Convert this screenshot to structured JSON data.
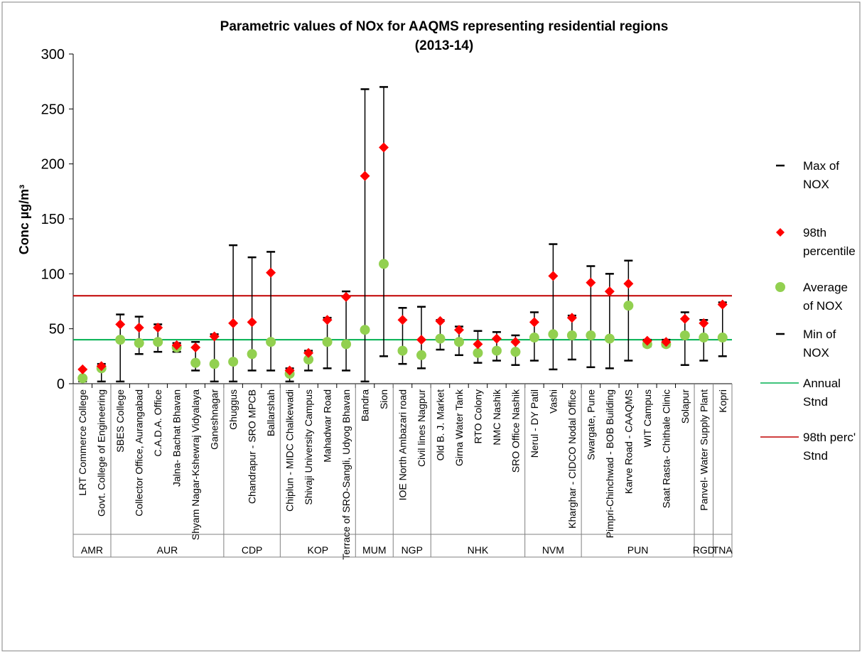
{
  "chart_data": {
    "type": "scatter",
    "title": "Parametric  values  of NOx for AAQMS representing residential regions",
    "subtitle": "(2013-14)",
    "ylabel": "Conc µg/m³",
    "ylim": [
      0,
      300
    ],
    "yticks": [
      0,
      50,
      100,
      150,
      200,
      250,
      300
    ],
    "stations": [
      {
        "name": "LRT Commerce College",
        "max": 13,
        "p98": 13,
        "avg": 5,
        "min": 2
      },
      {
        "name": "Govt. College of Engineering",
        "max": 18,
        "p98": 16,
        "avg": 14,
        "min": 2
      },
      {
        "name": "SBES College",
        "max": 63,
        "p98": 54,
        "avg": 40,
        "min": 2
      },
      {
        "name": "Collector Office, Aurangabad",
        "max": 61,
        "p98": 51,
        "avg": 37,
        "min": 27
      },
      {
        "name": "C.A.D.A. Office",
        "max": 54,
        "p98": 51,
        "avg": 38,
        "min": 29
      },
      {
        "name": "Jalna- Bachat Bhavan",
        "max": 37,
        "p98": 35,
        "avg": 33,
        "min": 29
      },
      {
        "name": "Shyam Nagar-Kshewraj Vidyalaya",
        "max": 38,
        "p98": 33,
        "avg": 19,
        "min": 12
      },
      {
        "name": "Ganeshnagar",
        "max": 45,
        "p98": 43,
        "avg": 18,
        "min": 2
      },
      {
        "name": "Ghuggus",
        "max": 126,
        "p98": 55,
        "avg": 20,
        "min": 2
      },
      {
        "name": "Chandrapur - SRO MPCB",
        "max": 115,
        "p98": 56,
        "avg": 27,
        "min": 12
      },
      {
        "name": "Ballarshah",
        "max": 120,
        "p98": 101,
        "avg": 38,
        "min": 12
      },
      {
        "name": "Chiplun - MIDC Chalkewadi",
        "max": 14,
        "p98": 12,
        "avg": 9,
        "min": 2
      },
      {
        "name": "Shivaji University Campus",
        "max": 30,
        "p98": 28,
        "avg": 22,
        "min": 12
      },
      {
        "name": "Mahadwar Road",
        "max": 60,
        "p98": 58,
        "avg": 38,
        "min": 14
      },
      {
        "name": "Terrace of SRO-Sangli, Udyog Bhavan",
        "max": 84,
        "p98": 79,
        "avg": 36,
        "min": 12
      },
      {
        "name": "Bandra",
        "max": 268,
        "p98": 189,
        "avg": 49,
        "min": 2
      },
      {
        "name": "Sion",
        "max": 270,
        "p98": 215,
        "avg": 109,
        "min": 25
      },
      {
        "name": "IOE North Ambazari road",
        "max": 69,
        "p98": 58,
        "avg": 30,
        "min": 18
      },
      {
        "name": "Civil lines Nagpur",
        "max": 70,
        "p98": 40,
        "avg": 26,
        "min": 14
      },
      {
        "name": "Old B. J. Market",
        "max": 58,
        "p98": 57,
        "avg": 41,
        "min": 31
      },
      {
        "name": "Girna Water Tank",
        "max": 52,
        "p98": 49,
        "avg": 38,
        "min": 26
      },
      {
        "name": "RTO Colony",
        "max": 48,
        "p98": 36,
        "avg": 28,
        "min": 19
      },
      {
        "name": "NMC Nashik",
        "max": 47,
        "p98": 41,
        "avg": 30,
        "min": 21
      },
      {
        "name": "SRO Office Nashik",
        "max": 44,
        "p98": 38,
        "avg": 29,
        "min": 17
      },
      {
        "name": "Nerul - DY Patil",
        "max": 65,
        "p98": 56,
        "avg": 42,
        "min": 21
      },
      {
        "name": "Vashi",
        "max": 127,
        "p98": 98,
        "avg": 45,
        "min": 13
      },
      {
        "name": "Kharghar - CIDCO Nodal Office",
        "max": 62,
        "p98": 60,
        "avg": 44,
        "min": 22
      },
      {
        "name": "Swargate, Pune",
        "max": 107,
        "p98": 92,
        "avg": 44,
        "min": 15
      },
      {
        "name": "Pimpri-Chinchwad - BOB Building",
        "max": 100,
        "p98": 84,
        "avg": 41,
        "min": 14
      },
      {
        "name": "Karve Road - CAAQMS",
        "max": 112,
        "p98": 91,
        "avg": 71,
        "min": 21
      },
      {
        "name": "WIT Campus",
        "max": 40,
        "p98": 39,
        "avg": 36,
        "min": 34
      },
      {
        "name": "Saat Rasta- Chithale Clinic",
        "max": 40,
        "p98": 38,
        "avg": 36,
        "min": 34
      },
      {
        "name": "Solapur",
        "max": 65,
        "p98": 59,
        "avg": 44,
        "min": 17
      },
      {
        "name": "Panvel- Water Supply Plant",
        "max": 58,
        "p98": 55,
        "avg": 42,
        "min": 21
      },
      {
        "name": "Kopri",
        "max": 74,
        "p98": 72,
        "avg": 42,
        "min": 25
      }
    ],
    "groups": [
      {
        "name": "AMR",
        "count": 2
      },
      {
        "name": "AUR",
        "count": 6
      },
      {
        "name": "CDP",
        "count": 3
      },
      {
        "name": "KOP",
        "count": 4
      },
      {
        "name": "MUM",
        "count": 2
      },
      {
        "name": "NGP",
        "count": 2
      },
      {
        "name": "NHK",
        "count": 5
      },
      {
        "name": "NVM",
        "count": 3
      },
      {
        "name": "PUN",
        "count": 6
      },
      {
        "name": "RGD",
        "count": 1
      },
      {
        "name": "TNA",
        "count": 1
      }
    ],
    "standards": {
      "annual": 40,
      "p98": 80
    },
    "legend": {
      "placement": "right",
      "entries": [
        {
          "key": "max",
          "lines": [
            "Max of",
            "NOX"
          ]
        },
        {
          "key": "p98",
          "lines": [
            "98th",
            "percentile"
          ]
        },
        {
          "key": "avg",
          "lines": [
            "Average",
            "of NOX"
          ]
        },
        {
          "key": "min",
          "lines": [
            "Min of",
            "NOX"
          ]
        },
        {
          "key": "annual",
          "lines": [
            "Annual",
            "Stnd"
          ]
        },
        {
          "key": "p98std",
          "lines": [
            "98th perc'",
            "Stnd"
          ]
        }
      ]
    },
    "colors": {
      "p98": "#ff0000",
      "avg": "#92d050",
      "annual": "#00b050",
      "p98std": "#c00000",
      "whisker": "#000000"
    }
  }
}
